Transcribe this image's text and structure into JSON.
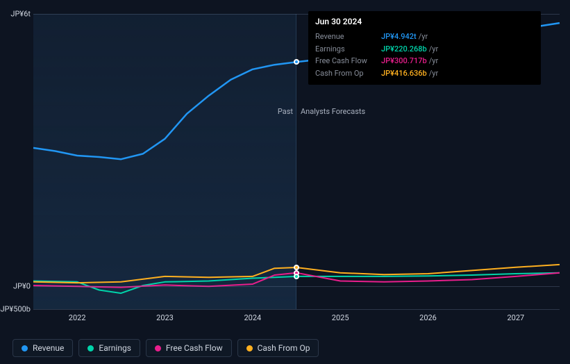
{
  "chart": {
    "type": "line",
    "background_color": "#0d1421",
    "past_fill": "rgba(22,42,66,0.7)",
    "grid_color": "rgba(120,140,170,0.3)",
    "label_color": "#d0d6e0",
    "label_fontsize": 11,
    "xlim": [
      2021.5,
      2027.5
    ],
    "ylim_t": [
      -0.5,
      6.0
    ],
    "divider_x": 2024.5,
    "region_labels": {
      "past": "Past",
      "forecast": "Analysts Forecasts"
    },
    "y_ticks": [
      {
        "v": 6.0,
        "label": "JP¥6t"
      },
      {
        "v": 0.0,
        "label": "JP¥0"
      },
      {
        "v": -0.5,
        "label": "-JP¥500b"
      }
    ],
    "x_ticks": [
      {
        "v": 2022,
        "label": "2022"
      },
      {
        "v": 2023,
        "label": "2023"
      },
      {
        "v": 2024,
        "label": "2024"
      },
      {
        "v": 2025,
        "label": "2025"
      },
      {
        "v": 2026,
        "label": "2026"
      },
      {
        "v": 2027,
        "label": "2027"
      }
    ],
    "series": [
      {
        "key": "revenue",
        "name": "Revenue",
        "color": "#2196f3",
        "width": 2.5,
        "points": [
          [
            2021.5,
            3.05
          ],
          [
            2021.75,
            2.98
          ],
          [
            2022.0,
            2.88
          ],
          [
            2022.25,
            2.85
          ],
          [
            2022.5,
            2.8
          ],
          [
            2022.75,
            2.92
          ],
          [
            2023.0,
            3.25
          ],
          [
            2023.25,
            3.8
          ],
          [
            2023.5,
            4.2
          ],
          [
            2023.75,
            4.55
          ],
          [
            2024.0,
            4.78
          ],
          [
            2024.25,
            4.88
          ],
          [
            2024.5,
            4.942
          ],
          [
            2025.0,
            5.05
          ],
          [
            2025.5,
            5.2
          ],
          [
            2026.0,
            5.35
          ],
          [
            2026.5,
            5.5
          ],
          [
            2027.0,
            5.65
          ],
          [
            2027.5,
            5.8
          ]
        ]
      },
      {
        "key": "earnings",
        "name": "Earnings",
        "color": "#00d4aa",
        "width": 2,
        "points": [
          [
            2021.5,
            0.12
          ],
          [
            2022.0,
            0.1
          ],
          [
            2022.25,
            -0.08
          ],
          [
            2022.5,
            -0.15
          ],
          [
            2022.75,
            0.02
          ],
          [
            2023.0,
            0.1
          ],
          [
            2023.5,
            0.12
          ],
          [
            2024.0,
            0.18
          ],
          [
            2024.25,
            0.2
          ],
          [
            2024.5,
            0.22
          ],
          [
            2025.0,
            0.22
          ],
          [
            2025.5,
            0.22
          ],
          [
            2026.0,
            0.23
          ],
          [
            2026.5,
            0.25
          ],
          [
            2027.0,
            0.28
          ],
          [
            2027.5,
            0.3
          ]
        ]
      },
      {
        "key": "fcf",
        "name": "Free Cash Flow",
        "color": "#e91e8c",
        "width": 2,
        "points": [
          [
            2021.5,
            0.02
          ],
          [
            2022.0,
            0.0
          ],
          [
            2022.5,
            -0.02
          ],
          [
            2023.0,
            0.03
          ],
          [
            2023.5,
            0.0
          ],
          [
            2024.0,
            0.05
          ],
          [
            2024.25,
            0.25
          ],
          [
            2024.4,
            0.28
          ],
          [
            2024.5,
            0.3
          ],
          [
            2025.0,
            0.12
          ],
          [
            2025.5,
            0.1
          ],
          [
            2026.0,
            0.12
          ],
          [
            2026.5,
            0.15
          ],
          [
            2027.0,
            0.22
          ],
          [
            2027.5,
            0.3
          ]
        ]
      },
      {
        "key": "cfo",
        "name": "Cash From Op",
        "color": "#ffb020",
        "width": 2,
        "points": [
          [
            2021.5,
            0.1
          ],
          [
            2022.0,
            0.08
          ],
          [
            2022.5,
            0.1
          ],
          [
            2023.0,
            0.22
          ],
          [
            2023.5,
            0.2
          ],
          [
            2024.0,
            0.22
          ],
          [
            2024.25,
            0.4
          ],
          [
            2024.5,
            0.417
          ],
          [
            2025.0,
            0.3
          ],
          [
            2025.5,
            0.26
          ],
          [
            2026.0,
            0.28
          ],
          [
            2026.5,
            0.35
          ],
          [
            2027.0,
            0.42
          ],
          [
            2027.5,
            0.48
          ]
        ]
      }
    ],
    "markers": [
      {
        "x": 2024.5,
        "y": 4.942,
        "fill": "#2196f3"
      },
      {
        "x": 2024.5,
        "y": 0.417,
        "fill": "#ffb020"
      },
      {
        "x": 2024.5,
        "y": 0.3,
        "fill": "#e91e8c"
      },
      {
        "x": 2024.5,
        "y": 0.22,
        "fill": "#00d4aa"
      }
    ]
  },
  "tooltip": {
    "title": "Jun 30 2024",
    "rows": [
      {
        "label": "Revenue",
        "value": "JP¥4.942t",
        "color": "#2196f3",
        "unit": "/yr"
      },
      {
        "label": "Earnings",
        "value": "JP¥220.268b",
        "color": "#00d4aa",
        "unit": "/yr"
      },
      {
        "label": "Free Cash Flow",
        "value": "JP¥300.717b",
        "color": "#e91e8c",
        "unit": "/yr"
      },
      {
        "label": "Cash From Op",
        "value": "JP¥416.636b",
        "color": "#ffb020",
        "unit": "/yr"
      }
    ]
  },
  "legend": [
    {
      "key": "revenue",
      "label": "Revenue",
      "color": "#2196f3"
    },
    {
      "key": "earnings",
      "label": "Earnings",
      "color": "#00d4aa"
    },
    {
      "key": "fcf",
      "label": "Free Cash Flow",
      "color": "#e91e8c"
    },
    {
      "key": "cfo",
      "label": "Cash From Op",
      "color": "#ffb020"
    }
  ]
}
